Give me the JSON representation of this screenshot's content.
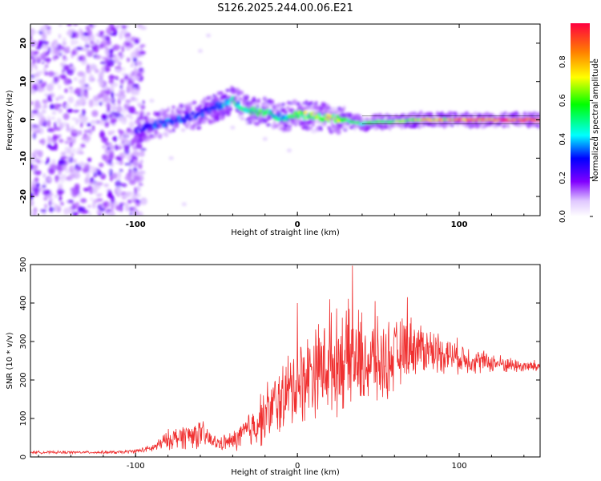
{
  "figure_title": "S126.2025.244.00.06.E21",
  "chart_data": [
    {
      "type": "heatmap",
      "name": "spectrogram",
      "xlabel": "Height of straight line (km)",
      "ylabel": "Frequency (Hz)",
      "xlim": [
        -165,
        150
      ],
      "ylim": [
        -25,
        25
      ],
      "x_ticks": [
        -100,
        0,
        100
      ],
      "y_ticks": [
        -20,
        -10,
        0,
        10,
        20
      ],
      "colorbar": {
        "label": "Normalized spectral amplitude",
        "range": [
          0,
          1
        ],
        "ticks": [
          0.0,
          0.2,
          0.4,
          0.6,
          0.8
        ],
        "tick_labels": [
          "0.0",
          "0.2",
          "0.4",
          "0.6",
          "0.8"
        ],
        "colors": [
          "#ffffff",
          "#d9b3ff",
          "#8000ff",
          "#0000ff",
          "#00ffff",
          "#00ff00",
          "#ffff00",
          "#ff8000",
          "#ff0040"
        ]
      },
      "ridge": {
        "description": "dominant frequency track vs height",
        "x": [
          -100,
          -90,
          -80,
          -70,
          -60,
          -50,
          -40,
          -30,
          -20,
          -10,
          0,
          10,
          20,
          30,
          40,
          50,
          60,
          70,
          80,
          90,
          100,
          110,
          120,
          130,
          140,
          150
        ],
        "y": [
          -3,
          -1.5,
          -0.5,
          0.5,
          1.5,
          3.5,
          5,
          2.5,
          2,
          0.5,
          1.5,
          1,
          0.5,
          0,
          -1,
          -0.5,
          -0.5,
          0,
          0,
          0,
          0,
          0,
          0,
          0,
          0,
          0
        ],
        "amplitude": [
          0.25,
          0.3,
          0.35,
          0.3,
          0.3,
          0.35,
          0.45,
          0.5,
          0.55,
          0.4,
          0.6,
          0.6,
          0.65,
          0.6,
          0.5,
          0.55,
          0.6,
          0.65,
          0.75,
          0.8,
          0.85,
          0.9,
          0.9,
          0.95,
          0.95,
          0.95
        ]
      },
      "noise_region_x": [
        -165,
        -95
      ]
    },
    {
      "type": "line",
      "name": "snr",
      "xlabel": "Height of straight line (km)",
      "ylabel": "SNR (10 * v/v)",
      "xlim": [
        -165,
        150
      ],
      "ylim": [
        0,
        500
      ],
      "x_ticks": [
        -100,
        0,
        100
      ],
      "y_ticks": [
        0,
        100,
        200,
        300,
        400,
        500
      ],
      "color": "#f03030",
      "series": [
        {
          "name": "SNR",
          "x": [
            -165,
            -150,
            -130,
            -110,
            -100,
            -90,
            -80,
            -70,
            -60,
            -50,
            -40,
            -30,
            -20,
            -10,
            0,
            10,
            20,
            30,
            40,
            50,
            60,
            70,
            80,
            90,
            100,
            110,
            120,
            130,
            140,
            150
          ],
          "y_mean": [
            12,
            12,
            12,
            12,
            15,
            22,
            45,
            55,
            60,
            35,
            40,
            70,
            110,
            150,
            190,
            230,
            240,
            260,
            250,
            240,
            260,
            290,
            280,
            270,
            260,
            250,
            245,
            240,
            235,
            235
          ],
          "y_spread": [
            4,
            4,
            4,
            5,
            6,
            12,
            30,
            40,
            45,
            20,
            30,
            60,
            90,
            110,
            130,
            140,
            150,
            160,
            150,
            130,
            110,
            90,
            75,
            60,
            50,
            40,
            30,
            25,
            20,
            20
          ],
          "peaks": [
            {
              "x": 20,
              "y": 410
            },
            {
              "x": 34,
              "y": 497
            },
            {
              "x": 48,
              "y": 405
            },
            {
              "x": 68,
              "y": 415
            },
            {
              "x": 0,
              "y": 400
            }
          ]
        }
      ]
    }
  ]
}
